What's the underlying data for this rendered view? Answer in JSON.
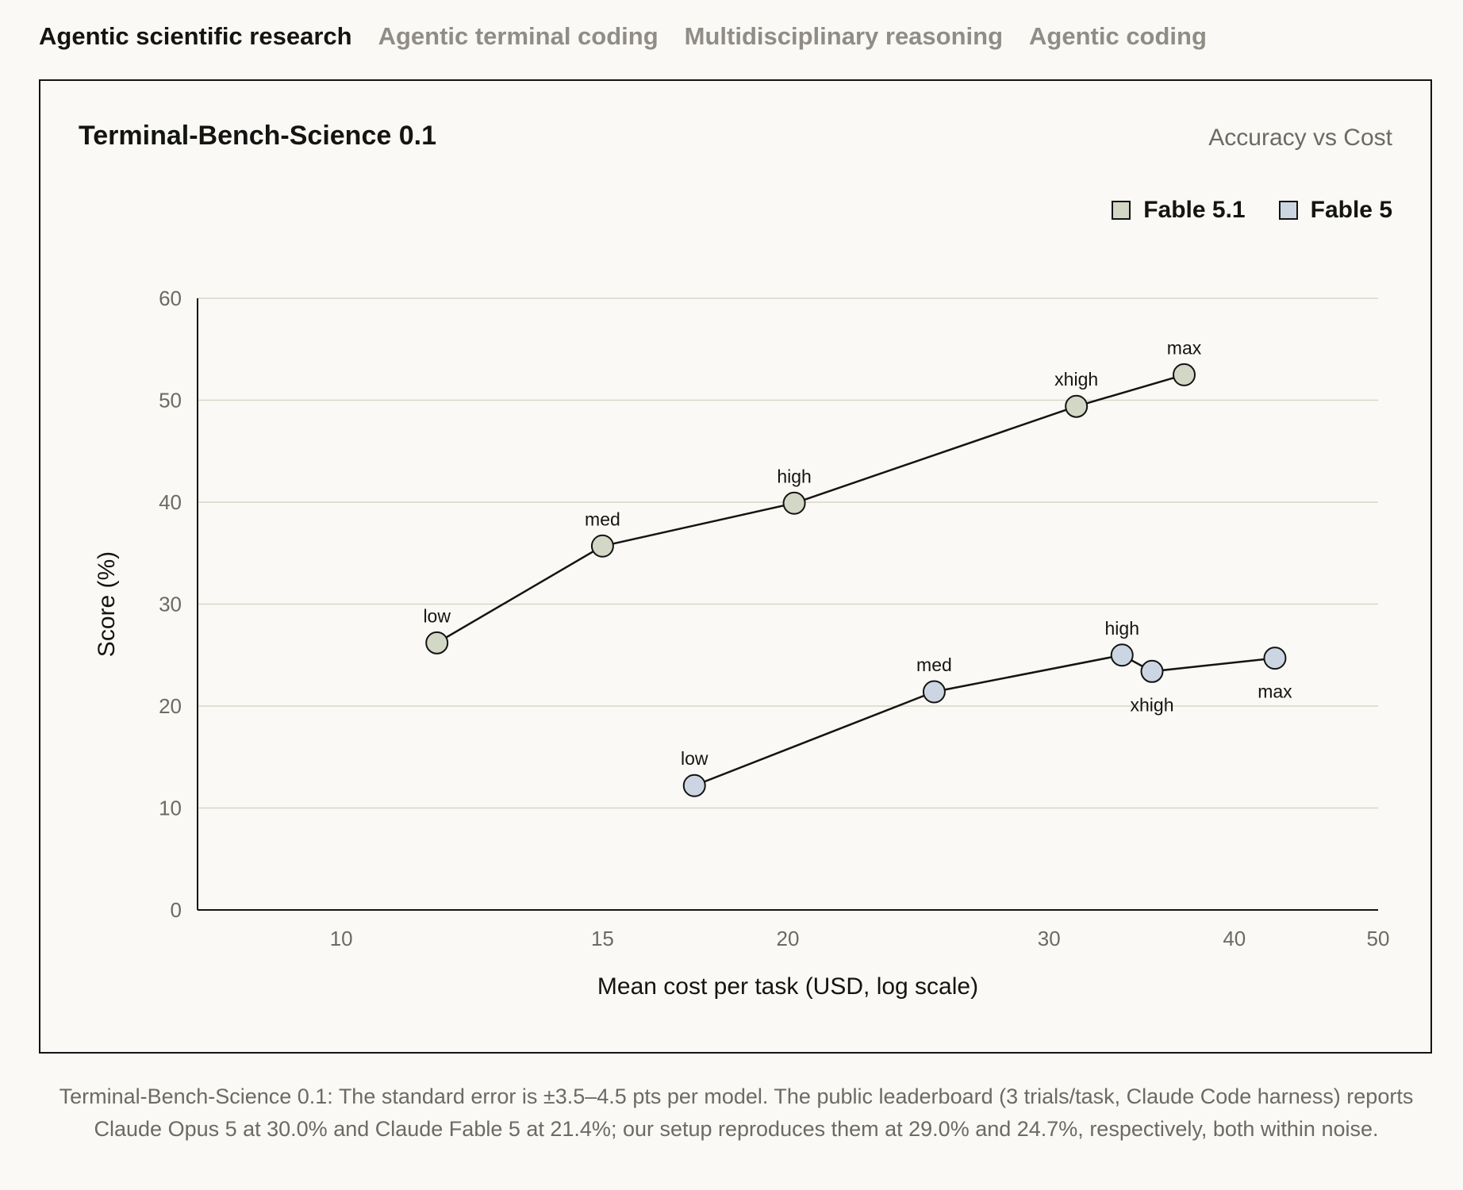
{
  "tabs": [
    {
      "label": "Agentic scientific research",
      "active": true
    },
    {
      "label": "Agentic terminal coding",
      "active": false
    },
    {
      "label": "Multidisciplinary reasoning",
      "active": false
    },
    {
      "label": "Agentic coding",
      "active": false
    }
  ],
  "colors": {
    "fable_5_1": "#d3d7c5",
    "fable_5": "#ccd6e3",
    "ink": "#141413",
    "grid": "#d9d6c8",
    "muted": "#6b6a65"
  },
  "chart_data": {
    "type": "line",
    "title": "Terminal-Bench-Science 0.1",
    "subtitle": "Accuracy vs Cost",
    "xlabel": "Mean cost per task (USD, log scale)",
    "ylabel": "Score (%)",
    "x_scale": "log",
    "xlim": [
      8,
      50
    ],
    "ylim": [
      0,
      60
    ],
    "x_ticks": [
      10,
      15,
      20,
      30,
      40,
      50
    ],
    "y_ticks": [
      0,
      10,
      20,
      30,
      40,
      50,
      60
    ],
    "grid": "horizontal",
    "legend_position": "top-right",
    "series": [
      {
        "name": "Fable 5.1",
        "points": [
          {
            "label": "low",
            "x": 11.6,
            "y": 26.2
          },
          {
            "label": "med",
            "x": 15.0,
            "y": 35.7
          },
          {
            "label": "high",
            "x": 20.2,
            "y": 39.9
          },
          {
            "label": "xhigh",
            "x": 31.3,
            "y": 49.4
          },
          {
            "label": "max",
            "x": 37.0,
            "y": 52.5
          }
        ]
      },
      {
        "name": "Fable 5",
        "points": [
          {
            "label": "low",
            "x": 17.3,
            "y": 12.2
          },
          {
            "label": "med",
            "x": 25.1,
            "y": 21.4
          },
          {
            "label": "high",
            "x": 33.6,
            "y": 25.0
          },
          {
            "label": "xhigh",
            "x": 35.2,
            "y": 23.4
          },
          {
            "label": "max",
            "x": 42.6,
            "y": 24.7
          }
        ]
      }
    ]
  },
  "caption": "Terminal-Bench-Science 0.1: The standard error is ±3.5–4.5 pts per model. The public leaderboard (3 trials/task, Claude Code harness) reports Claude Opus 5 at 30.0% and Claude Fable 5 at 21.4%; our setup reproduces them at 29.0% and 24.7%, respectively, both within noise."
}
